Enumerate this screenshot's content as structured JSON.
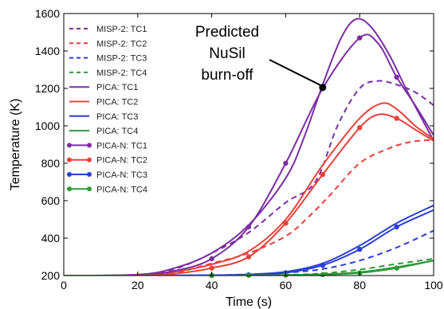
{
  "chart_data": {
    "type": "line",
    "xlabel": "Time (s)",
    "ylabel": "Temperature (K)",
    "xlim": [
      0,
      100
    ],
    "ylim": [
      200,
      1600
    ],
    "xticks": [
      0,
      20,
      40,
      60,
      80,
      100
    ],
    "yticks": [
      200,
      400,
      600,
      800,
      1000,
      1200,
      1400,
      1600
    ],
    "grid": false,
    "legend_position": "top-left",
    "colors": {
      "TC1": "#7b2ea3",
      "TC2": "#e8413a",
      "TC3": "#2b3ed6",
      "TC4": "#2e9a38"
    },
    "series": [
      {
        "name": "MISP-2: TC1",
        "tc": "TC1",
        "style": "dashed",
        "points": [
          [
            0,
            200
          ],
          [
            20,
            203
          ],
          [
            30,
            235
          ],
          [
            40,
            320
          ],
          [
            50,
            430
          ],
          [
            60,
            590
          ],
          [
            68,
            700
          ],
          [
            74,
            1000
          ],
          [
            80,
            1200
          ],
          [
            85,
            1240
          ],
          [
            90,
            1220
          ],
          [
            95,
            1180
          ],
          [
            100,
            1110
          ]
        ]
      },
      {
        "name": "MISP-2: TC2",
        "tc": "TC2",
        "style": "dashed",
        "points": [
          [
            0,
            200
          ],
          [
            20,
            201
          ],
          [
            30,
            215
          ],
          [
            40,
            265
          ],
          [
            50,
            320
          ],
          [
            60,
            410
          ],
          [
            66,
            510
          ],
          [
            72,
            630
          ],
          [
            80,
            800
          ],
          [
            88,
            880
          ],
          [
            94,
            915
          ],
          [
            100,
            925
          ]
        ]
      },
      {
        "name": "MISP-2: TC3",
        "tc": "TC3",
        "style": "dashed",
        "points": [
          [
            0,
            200
          ],
          [
            20,
            200
          ],
          [
            40,
            202
          ],
          [
            50,
            207
          ],
          [
            60,
            215
          ],
          [
            70,
            235
          ],
          [
            80,
            280
          ],
          [
            90,
            350
          ],
          [
            100,
            440
          ]
        ]
      },
      {
        "name": "MISP-2: TC4",
        "tc": "TC4",
        "style": "dashed",
        "points": [
          [
            0,
            200
          ],
          [
            40,
            200
          ],
          [
            60,
            204
          ],
          [
            70,
            212
          ],
          [
            80,
            232
          ],
          [
            90,
            262
          ],
          [
            100,
            290
          ]
        ]
      },
      {
        "name": "PICA: TC1",
        "tc": "TC1",
        "style": "solid",
        "points": [
          [
            0,
            200
          ],
          [
            20,
            205
          ],
          [
            30,
            240
          ],
          [
            40,
            320
          ],
          [
            50,
            470
          ],
          [
            60,
            720
          ],
          [
            65,
            940
          ],
          [
            70,
            1220
          ],
          [
            75,
            1470
          ],
          [
            79,
            1570
          ],
          [
            83,
            1530
          ],
          [
            88,
            1380
          ],
          [
            93,
            1180
          ],
          [
            100,
            920
          ]
        ]
      },
      {
        "name": "PICA: TC2",
        "tc": "TC2",
        "style": "solid",
        "points": [
          [
            0,
            200
          ],
          [
            20,
            202
          ],
          [
            30,
            220
          ],
          [
            40,
            260
          ],
          [
            50,
            330
          ],
          [
            60,
            500
          ],
          [
            70,
            790
          ],
          [
            80,
            1040
          ],
          [
            86,
            1120
          ],
          [
            90,
            1090
          ],
          [
            95,
            1000
          ],
          [
            100,
            930
          ]
        ]
      },
      {
        "name": "PICA: TC3",
        "tc": "TC3",
        "style": "solid",
        "points": [
          [
            0,
            200
          ],
          [
            20,
            200
          ],
          [
            40,
            202
          ],
          [
            50,
            206
          ],
          [
            60,
            220
          ],
          [
            70,
            265
          ],
          [
            80,
            360
          ],
          [
            90,
            480
          ],
          [
            100,
            575
          ]
        ]
      },
      {
        "name": "PICA: TC4",
        "tc": "TC4",
        "style": "solid",
        "points": [
          [
            0,
            200
          ],
          [
            40,
            200
          ],
          [
            60,
            203
          ],
          [
            70,
            207
          ],
          [
            80,
            218
          ],
          [
            90,
            245
          ],
          [
            100,
            280
          ]
        ]
      },
      {
        "name": "PICA-N: TC1",
        "tc": "TC1",
        "style": "marker",
        "points": [
          [
            0,
            200
          ],
          [
            20,
            203
          ],
          [
            30,
            225
          ],
          [
            40,
            290
          ],
          [
            50,
            460
          ],
          [
            60,
            800
          ],
          [
            70,
            1200
          ],
          [
            80,
            1470
          ],
          [
            85,
            1440
          ],
          [
            90,
            1260
          ],
          [
            95,
            1110
          ],
          [
            100,
            950
          ]
        ]
      },
      {
        "name": "PICA-N: TC2",
        "tc": "TC2",
        "style": "marker",
        "points": [
          [
            0,
            200
          ],
          [
            20,
            201
          ],
          [
            30,
            210
          ],
          [
            40,
            240
          ],
          [
            50,
            300
          ],
          [
            60,
            480
          ],
          [
            70,
            740
          ],
          [
            80,
            990
          ],
          [
            85,
            1060
          ],
          [
            90,
            1040
          ],
          [
            95,
            980
          ],
          [
            100,
            920
          ]
        ]
      },
      {
        "name": "PICA-N: TC3",
        "tc": "TC3",
        "style": "marker",
        "points": [
          [
            0,
            200
          ],
          [
            20,
            200
          ],
          [
            40,
            201
          ],
          [
            50,
            204
          ],
          [
            60,
            215
          ],
          [
            70,
            255
          ],
          [
            80,
            340
          ],
          [
            90,
            460
          ],
          [
            100,
            550
          ]
        ]
      },
      {
        "name": "PICA-N: TC4",
        "tc": "TC4",
        "style": "marker",
        "points": [
          [
            0,
            200
          ],
          [
            40,
            200
          ],
          [
            60,
            202
          ],
          [
            70,
            205
          ],
          [
            80,
            214
          ],
          [
            90,
            240
          ],
          [
            100,
            280
          ]
        ]
      }
    ],
    "marker_x": [
      40,
      50,
      60,
      70,
      80,
      90
    ],
    "annotations": [
      {
        "lines": [
          "Predicted",
          "NuSil",
          "burn-off"
        ],
        "point": [
          70,
          1205
        ]
      }
    ]
  }
}
